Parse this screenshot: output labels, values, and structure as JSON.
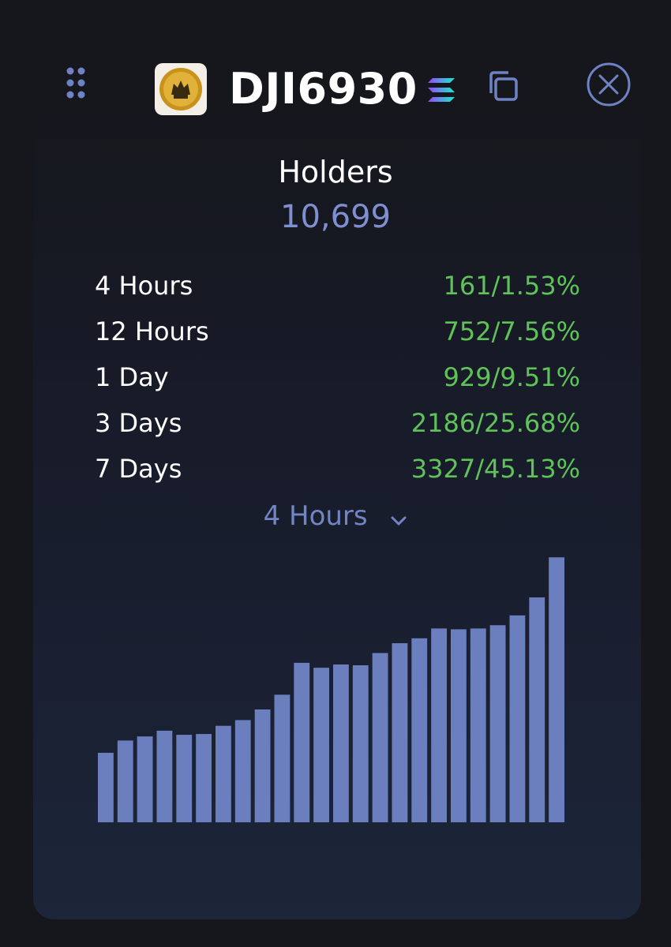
{
  "header": {
    "token_name": "DJI6930",
    "icons": {
      "drag": "drag-handle-icon",
      "chain": "solana-icon",
      "copy": "copy-icon",
      "close": "close-icon"
    }
  },
  "holders": {
    "title": "Holders",
    "count": "10,699"
  },
  "stats": [
    {
      "label": "4 Hours",
      "value": "161/1.53%"
    },
    {
      "label": "12 Hours",
      "value": "752/7.56%"
    },
    {
      "label": "1 Day",
      "value": "929/9.51%"
    },
    {
      "label": "3 Days",
      "value": "2186/25.68%"
    },
    {
      "label": "7 Days",
      "value": "3327/45.13%"
    }
  ],
  "period_selector": {
    "selected": "4 Hours"
  },
  "colors": {
    "background": "#16171c",
    "accent": "#7f8fd0",
    "positive": "#5fc35a",
    "bar": "#6b7fbe"
  },
  "chart_data": {
    "type": "bar",
    "values": [
      85,
      100,
      105,
      112,
      107,
      108,
      118,
      125,
      138,
      156,
      195,
      189,
      193,
      192,
      207,
      219,
      225,
      237,
      236,
      237,
      241,
      253,
      275,
      324
    ],
    "ylim": [
      0,
      330
    ],
    "grid": false
  }
}
